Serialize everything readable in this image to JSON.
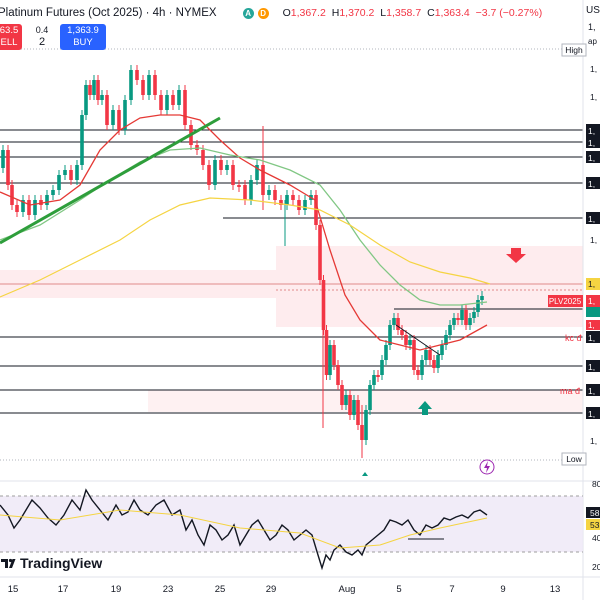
{
  "header": {
    "title": "Platinum Futures (Oct 2025) · 4h · NYMEX",
    "open_label": "O",
    "open": "1,367.2",
    "high_label": "H",
    "high": "1,370.2",
    "low_label": "L",
    "low": "1,358.7",
    "close_label": "C",
    "close": "1,363.4",
    "change": "−3.7 (−0.27%)",
    "sell_price": "63.5",
    "sell_label": "ELL",
    "spread_label": "0.4",
    "spread_value": "2",
    "buy_price": "1,363.9",
    "buy_label": "BUY",
    "dot_a": "A",
    "dot_d": "D"
  },
  "right_axis": {
    "high_label": "High",
    "low_label": "Low",
    "top_partial": "US",
    "top_partial2": "1,",
    "top_partial3": "ap",
    "labels": [
      "1,",
      "1,",
      "1,",
      "1,",
      "1,",
      "1,",
      "1,",
      "1,",
      "1,",
      "1,",
      "1,",
      "1,",
      "1,"
    ],
    "price_tag": "1,",
    "level_tag_pl": "PLV2025",
    "rsi_top": "80",
    "rsi_val1": "58",
    "rsi_val2": "53",
    "rsi_mid": "40",
    "rsi_bottom": "20"
  },
  "annotations": {
    "kc": "kc đ",
    "ma": "ma đ"
  },
  "x_axis": {
    "ticks": [
      "15",
      "17",
      "19",
      "23",
      "25",
      "29",
      "Aug",
      "5",
      "7",
      "9",
      "13"
    ]
  },
  "branding": {
    "logo_text": "TradingView"
  },
  "colors": {
    "up": "#089981",
    "down": "#f23645",
    "ma_fast": "#e53935",
    "ma_slow": "#81c784",
    "ma_long": "#f5d442",
    "trend": "#2e9e3b",
    "zone": "#fde6e8",
    "rsi_band": "#ede7f6",
    "rsi_line": "#131722",
    "rsi_ma": "#f5d442"
  },
  "chart_data": {
    "type": "candlestick",
    "title": "Platinum Futures (Oct 2025) · 4h · NYMEX",
    "interval": "4h",
    "last_bar": {
      "open": 1367.2,
      "high": 1370.2,
      "low": 1358.7,
      "close": 1363.4,
      "change": -3.7,
      "change_pct": -0.27
    },
    "horizontal_levels_note": "multiple black horizontal support/resistance lines; a light red supply zone and a demand zone",
    "series": [
      {
        "name": "PLV2025",
        "type": "candles"
      }
    ],
    "indicators": [
      "moving average (red)",
      "moving average (green)",
      "moving average (yellow)",
      "RSI panel with 80/20 band"
    ],
    "rsi_axis": [
      20,
      40,
      53,
      58,
      80
    ]
  }
}
